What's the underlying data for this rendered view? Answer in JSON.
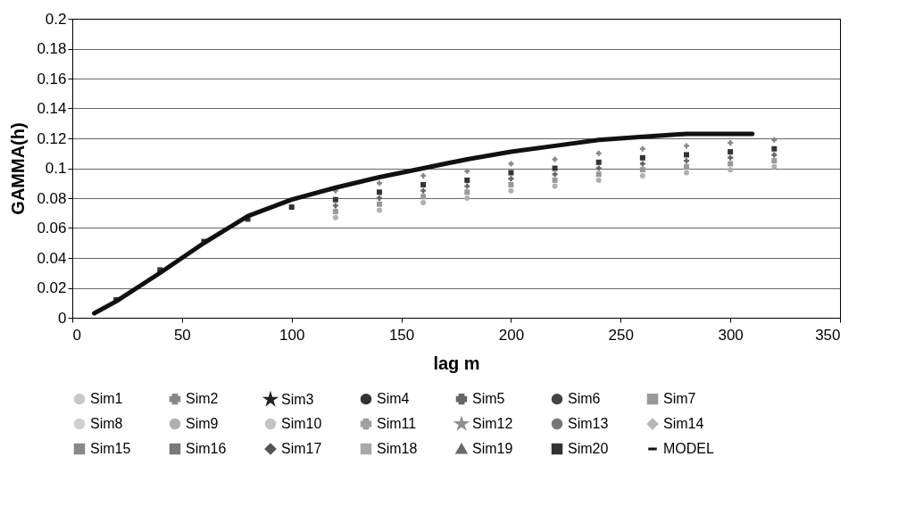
{
  "chart_data": {
    "type": "scatter",
    "xlabel": "lag m",
    "ylabel": "GAMMA(h)",
    "xlim": [
      0,
      350
    ],
    "xticks": [
      0,
      50,
      100,
      150,
      200,
      250,
      300,
      350
    ],
    "ylim": [
      0,
      0.2
    ],
    "yticks": [
      0,
      0.02,
      0.04,
      0.06,
      0.08,
      0.1,
      0.12,
      0.14,
      0.16,
      0.18,
      0.2
    ],
    "grid": "y",
    "legend": "bottom",
    "x": [
      20,
      40,
      60,
      80,
      100,
      120,
      140,
      160,
      180,
      200,
      220,
      240,
      260,
      280,
      300,
      320
    ],
    "series": [
      {
        "name": "Sim1",
        "color": "#c8c8c8",
        "marker": "circle",
        "values": [
          null,
          null,
          null,
          null,
          null,
          null,
          null,
          null,
          null,
          null,
          null,
          null,
          null,
          null,
          null,
          null
        ]
      },
      {
        "name": "Sim2",
        "color": "#888888",
        "marker": "cross",
        "values": [
          null,
          null,
          null,
          null,
          null,
          0.085,
          0.09,
          0.095,
          0.098,
          0.103,
          0.106,
          0.11,
          0.113,
          0.115,
          0.117,
          0.119
        ]
      },
      {
        "name": "Sim3",
        "color": "#222222",
        "marker": "star",
        "values": [
          null,
          null,
          null,
          null,
          null,
          null,
          null,
          null,
          null,
          null,
          null,
          null,
          null,
          null,
          null,
          null
        ]
      },
      {
        "name": "Sim4",
        "color": "#333333",
        "marker": "circle",
        "values": [
          null,
          null,
          null,
          null,
          null,
          null,
          null,
          null,
          null,
          null,
          null,
          null,
          null,
          null,
          null,
          null
        ]
      },
      {
        "name": "Sim5",
        "color": "#666666",
        "marker": "cross",
        "values": [
          null,
          null,
          null,
          null,
          null,
          0.075,
          0.08,
          0.085,
          0.088,
          0.093,
          0.096,
          0.1,
          0.103,
          0.105,
          0.107,
          0.109
        ]
      },
      {
        "name": "Sim6",
        "color": "#444444",
        "marker": "circle",
        "values": [
          null,
          null,
          null,
          null,
          null,
          null,
          null,
          null,
          null,
          null,
          null,
          null,
          null,
          null,
          null,
          null
        ]
      },
      {
        "name": "Sim7",
        "color": "#999999",
        "marker": "square",
        "values": [
          null,
          null,
          null,
          null,
          null,
          0.071,
          0.076,
          0.081,
          0.084,
          0.089,
          0.092,
          0.096,
          0.099,
          0.101,
          0.103,
          0.105
        ]
      },
      {
        "name": "Sim8",
        "color": "#d0d0d0",
        "marker": "circle",
        "values": [
          null,
          null,
          null,
          null,
          null,
          null,
          null,
          null,
          null,
          null,
          null,
          null,
          null,
          null,
          null,
          null
        ]
      },
      {
        "name": "Sim9",
        "color": "#b0b0b0",
        "marker": "circle",
        "values": [
          null,
          null,
          null,
          null,
          null,
          0.067,
          0.072,
          0.077,
          0.08,
          0.085,
          0.088,
          0.092,
          0.095,
          0.097,
          0.099,
          0.101
        ]
      },
      {
        "name": "Sim10",
        "color": "#c4c4c4",
        "marker": "circle",
        "values": [
          null,
          null,
          null,
          null,
          null,
          null,
          null,
          null,
          null,
          null,
          null,
          null,
          null,
          null,
          null,
          null
        ]
      },
      {
        "name": "Sim11",
        "color": "#a0a0a0",
        "marker": "cross",
        "values": [
          null,
          null,
          null,
          null,
          null,
          null,
          null,
          null,
          null,
          null,
          null,
          null,
          null,
          null,
          null,
          null
        ]
      },
      {
        "name": "Sim12",
        "color": "#909090",
        "marker": "star",
        "values": [
          null,
          null,
          null,
          null,
          null,
          null,
          null,
          null,
          null,
          null,
          null,
          null,
          null,
          null,
          null,
          null
        ]
      },
      {
        "name": "Sim13",
        "color": "#777777",
        "marker": "circle",
        "values": [
          null,
          null,
          null,
          null,
          null,
          null,
          null,
          null,
          null,
          null,
          null,
          null,
          null,
          null,
          null,
          null
        ]
      },
      {
        "name": "Sim14",
        "color": "#b8b8b8",
        "marker": "diamond",
        "values": [
          null,
          null,
          null,
          null,
          null,
          null,
          null,
          null,
          null,
          null,
          null,
          null,
          null,
          null,
          null,
          null
        ]
      },
      {
        "name": "Sim15",
        "color": "#8a8a8a",
        "marker": "square",
        "values": [
          null,
          null,
          null,
          null,
          null,
          null,
          null,
          null,
          null,
          null,
          null,
          null,
          null,
          null,
          null,
          null
        ]
      },
      {
        "name": "Sim16",
        "color": "#7a7a7a",
        "marker": "square",
        "values": [
          null,
          null,
          null,
          null,
          null,
          null,
          null,
          null,
          null,
          null,
          null,
          null,
          null,
          null,
          null,
          null
        ]
      },
      {
        "name": "Sim17",
        "color": "#555555",
        "marker": "diamond",
        "values": [
          null,
          null,
          null,
          null,
          null,
          null,
          null,
          null,
          null,
          null,
          null,
          null,
          null,
          null,
          null,
          null
        ]
      },
      {
        "name": "Sim18",
        "color": "#a8a8a8",
        "marker": "square",
        "values": [
          null,
          null,
          null,
          null,
          null,
          null,
          null,
          null,
          null,
          null,
          null,
          null,
          null,
          null,
          null,
          null
        ]
      },
      {
        "name": "Sim19",
        "color": "#6a6a6a",
        "marker": "triangle",
        "values": [
          null,
          null,
          null,
          null,
          null,
          null,
          null,
          null,
          null,
          null,
          null,
          null,
          null,
          null,
          null,
          null
        ]
      },
      {
        "name": "Sim20",
        "color": "#333333",
        "marker": "square",
        "values": [
          0.012,
          0.032,
          0.051,
          0.066,
          0.074,
          0.079,
          0.084,
          0.089,
          0.092,
          0.097,
          0.1,
          0.104,
          0.107,
          0.109,
          0.111,
          0.113
        ]
      },
      {
        "name": "MODEL",
        "type": "line",
        "color": "#111111",
        "marker": "none",
        "x": [
          10,
          20,
          40,
          60,
          80,
          100,
          120,
          140,
          160,
          180,
          200,
          220,
          240,
          260,
          280,
          300,
          310
        ],
        "values": [
          0.003,
          0.011,
          0.03,
          0.05,
          0.068,
          0.079,
          0.087,
          0.094,
          0.1,
          0.106,
          0.111,
          0.115,
          0.119,
          0.121,
          0.123,
          0.123,
          0.123
        ]
      }
    ]
  }
}
